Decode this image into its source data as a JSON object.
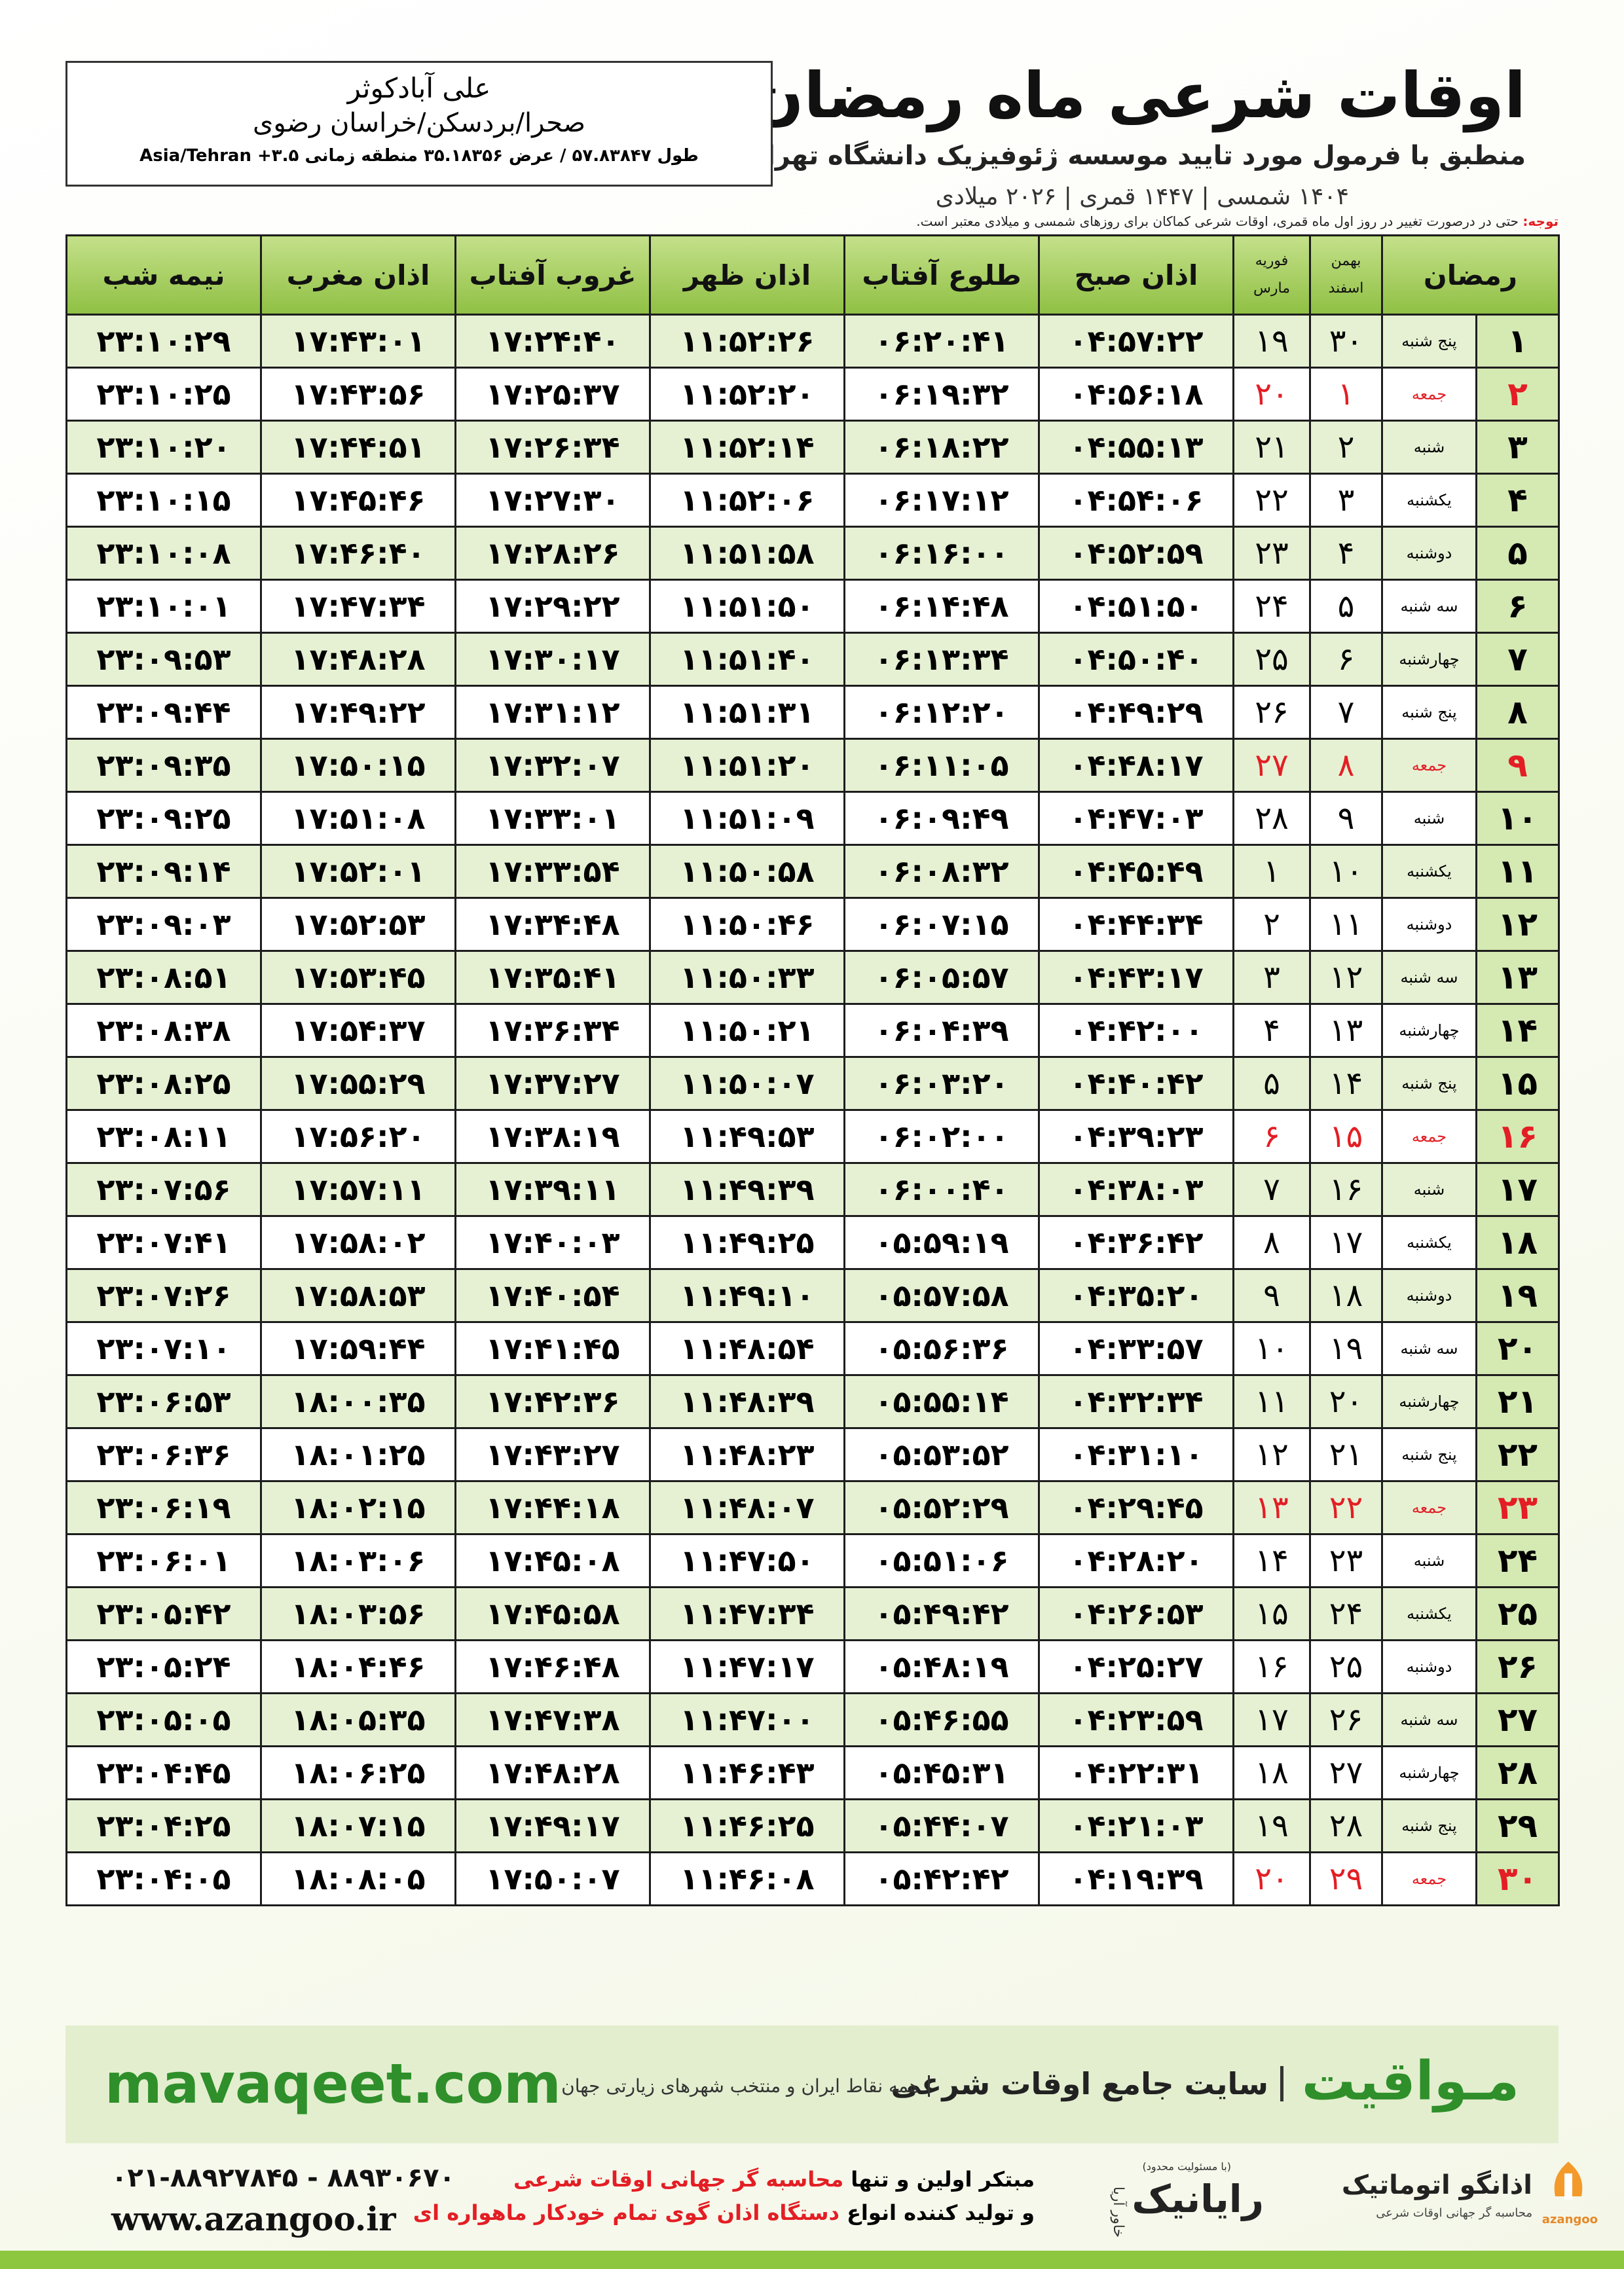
{
  "header": {
    "title": "اوقات شرعی ماه رمضان",
    "subtitle": "منطبق با فرمول مورد تایید موسسه ژئوفیزیک دانشگاه تهران",
    "years": "۱۴۰۴ شمسی | ۱۴۴۷ قمری | ۲۰۲۶ میلادی"
  },
  "location": {
    "name": "علی آبادکوثر",
    "region": "صحرا/بردسکن/خراسان رضوی",
    "coords": "طول ۵۷.۸۳۸۴۷ / عرض ۳۵.۱۸۳۵۶ منطقه زمانی ۳.۵+ Asia/Tehran"
  },
  "note": {
    "label": "توجه:",
    "text": "حتی در درصورت تغییر در روز اول ماه قمری، اوقات شرعی کماکان برای روزهای شمسی و میلادی معتبر است."
  },
  "table": {
    "highlight_color": "#e31e24",
    "columns": [
      "رمضان",
      [
        "بهمن",
        "اسفند"
      ],
      [
        "فوریه",
        "مارس"
      ],
      "اذان صبح",
      "طلوع آفتاب",
      "اذان ظهر",
      "غروب آفتاب",
      "اذان مغرب",
      "نیمه شب"
    ],
    "rows": [
      {
        "cells": [
          "۱",
          "پنج شنبه",
          "۳۰",
          "۱۹",
          "۰۴:۵۷:۲۲",
          "۰۶:۲۰:۴۱",
          "۱۱:۵۲:۲۶",
          "۱۷:۲۴:۴۰",
          "۱۷:۴۳:۰۱",
          "۲۳:۱۰:۲۹"
        ]
      },
      {
        "cells": [
          "۲",
          "جمعه",
          "۱",
          "۲۰",
          "۰۴:۵۶:۱۸",
          "۰۶:۱۹:۳۲",
          "۱۱:۵۲:۲۰",
          "۱۷:۲۵:۳۷",
          "۱۷:۴۳:۵۶",
          "۲۳:۱۰:۲۵"
        ],
        "highlight": true
      },
      {
        "cells": [
          "۳",
          "شنبه",
          "۲",
          "۲۱",
          "۰۴:۵۵:۱۳",
          "۰۶:۱۸:۲۲",
          "۱۱:۵۲:۱۴",
          "۱۷:۲۶:۳۴",
          "۱۷:۴۴:۵۱",
          "۲۳:۱۰:۲۰"
        ]
      },
      {
        "cells": [
          "۴",
          "یکشنبه",
          "۳",
          "۲۲",
          "۰۴:۵۴:۰۶",
          "۰۶:۱۷:۱۲",
          "۱۱:۵۲:۰۶",
          "۱۷:۲۷:۳۰",
          "۱۷:۴۵:۴۶",
          "۲۳:۱۰:۱۵"
        ]
      },
      {
        "cells": [
          "۵",
          "دوشنبه",
          "۴",
          "۲۳",
          "۰۴:۵۲:۵۹",
          "۰۶:۱۶:۰۰",
          "۱۱:۵۱:۵۸",
          "۱۷:۲۸:۲۶",
          "۱۷:۴۶:۴۰",
          "۲۳:۱۰:۰۸"
        ]
      },
      {
        "cells": [
          "۶",
          "سه شنبه",
          "۵",
          "۲۴",
          "۰۴:۵۱:۵۰",
          "۰۶:۱۴:۴۸",
          "۱۱:۵۱:۵۰",
          "۱۷:۲۹:۲۲",
          "۱۷:۴۷:۳۴",
          "۲۳:۱۰:۰۱"
        ]
      },
      {
        "cells": [
          "۷",
          "چهارشنبه",
          "۶",
          "۲۵",
          "۰۴:۵۰:۴۰",
          "۰۶:۱۳:۳۴",
          "۱۱:۵۱:۴۰",
          "۱۷:۳۰:۱۷",
          "۱۷:۴۸:۲۸",
          "۲۳:۰۹:۵۳"
        ]
      },
      {
        "cells": [
          "۸",
          "پنج شنبه",
          "۷",
          "۲۶",
          "۰۴:۴۹:۲۹",
          "۰۶:۱۲:۲۰",
          "۱۱:۵۱:۳۱",
          "۱۷:۳۱:۱۲",
          "۱۷:۴۹:۲۲",
          "۲۳:۰۹:۴۴"
        ]
      },
      {
        "cells": [
          "۹",
          "جمعه",
          "۸",
          "۲۷",
          "۰۴:۴۸:۱۷",
          "۰۶:۱۱:۰۵",
          "۱۱:۵۱:۲۰",
          "۱۷:۳۲:۰۷",
          "۱۷:۵۰:۱۵",
          "۲۳:۰۹:۳۵"
        ],
        "highlight": true
      },
      {
        "cells": [
          "۱۰",
          "شنبه",
          "۹",
          "۲۸",
          "۰۴:۴۷:۰۳",
          "۰۶:۰۹:۴۹",
          "۱۱:۵۱:۰۹",
          "۱۷:۳۳:۰۱",
          "۱۷:۵۱:۰۸",
          "۲۳:۰۹:۲۵"
        ]
      },
      {
        "cells": [
          "۱۱",
          "یکشنبه",
          "۱۰",
          "۱",
          "۰۴:۴۵:۴۹",
          "۰۶:۰۸:۳۲",
          "۱۱:۵۰:۵۸",
          "۱۷:۳۳:۵۴",
          "۱۷:۵۲:۰۱",
          "۲۳:۰۹:۱۴"
        ]
      },
      {
        "cells": [
          "۱۲",
          "دوشنبه",
          "۱۱",
          "۲",
          "۰۴:۴۴:۳۴",
          "۰۶:۰۷:۱۵",
          "۱۱:۵۰:۴۶",
          "۱۷:۳۴:۴۸",
          "۱۷:۵۲:۵۳",
          "۲۳:۰۹:۰۳"
        ]
      },
      {
        "cells": [
          "۱۳",
          "سه شنبه",
          "۱۲",
          "۳",
          "۰۴:۴۳:۱۷",
          "۰۶:۰۵:۵۷",
          "۱۱:۵۰:۳۳",
          "۱۷:۳۵:۴۱",
          "۱۷:۵۳:۴۵",
          "۲۳:۰۸:۵۱"
        ]
      },
      {
        "cells": [
          "۱۴",
          "چهارشنبه",
          "۱۳",
          "۴",
          "۰۴:۴۲:۰۰",
          "۰۶:۰۴:۳۹",
          "۱۱:۵۰:۲۱",
          "۱۷:۳۶:۳۴",
          "۱۷:۵۴:۳۷",
          "۲۳:۰۸:۳۸"
        ]
      },
      {
        "cells": [
          "۱۵",
          "پنج شنبه",
          "۱۴",
          "۵",
          "۰۴:۴۰:۴۲",
          "۰۶:۰۳:۲۰",
          "۱۱:۵۰:۰۷",
          "۱۷:۳۷:۲۷",
          "۱۷:۵۵:۲۹",
          "۲۳:۰۸:۲۵"
        ]
      },
      {
        "cells": [
          "۱۶",
          "جمعه",
          "۱۵",
          "۶",
          "۰۴:۳۹:۲۳",
          "۰۶:۰۲:۰۰",
          "۱۱:۴۹:۵۳",
          "۱۷:۳۸:۱۹",
          "۱۷:۵۶:۲۰",
          "۲۳:۰۸:۱۱"
        ],
        "highlight": true
      },
      {
        "cells": [
          "۱۷",
          "شنبه",
          "۱۶",
          "۷",
          "۰۴:۳۸:۰۳",
          "۰۶:۰۰:۴۰",
          "۱۱:۴۹:۳۹",
          "۱۷:۳۹:۱۱",
          "۱۷:۵۷:۱۱",
          "۲۳:۰۷:۵۶"
        ]
      },
      {
        "cells": [
          "۱۸",
          "یکشنبه",
          "۱۷",
          "۸",
          "۰۴:۳۶:۴۲",
          "۰۵:۵۹:۱۹",
          "۱۱:۴۹:۲۵",
          "۱۷:۴۰:۰۳",
          "۱۷:۵۸:۰۲",
          "۲۳:۰۷:۴۱"
        ]
      },
      {
        "cells": [
          "۱۹",
          "دوشنبه",
          "۱۸",
          "۹",
          "۰۴:۳۵:۲۰",
          "۰۵:۵۷:۵۸",
          "۱۱:۴۹:۱۰",
          "۱۷:۴۰:۵۴",
          "۱۷:۵۸:۵۳",
          "۲۳:۰۷:۲۶"
        ]
      },
      {
        "cells": [
          "۲۰",
          "سه شنبه",
          "۱۹",
          "۱۰",
          "۰۴:۳۳:۵۷",
          "۰۵:۵۶:۳۶",
          "۱۱:۴۸:۵۴",
          "۱۷:۴۱:۴۵",
          "۱۷:۵۹:۴۴",
          "۲۳:۰۷:۱۰"
        ]
      },
      {
        "cells": [
          "۲۱",
          "چهارشنبه",
          "۲۰",
          "۱۱",
          "۰۴:۳۲:۳۴",
          "۰۵:۵۵:۱۴",
          "۱۱:۴۸:۳۹",
          "۱۷:۴۲:۳۶",
          "۱۸:۰۰:۳۵",
          "۲۳:۰۶:۵۳"
        ]
      },
      {
        "cells": [
          "۲۲",
          "پنج شنبه",
          "۲۱",
          "۱۲",
          "۰۴:۳۱:۱۰",
          "۰۵:۵۳:۵۲",
          "۱۱:۴۸:۲۳",
          "۱۷:۴۳:۲۷",
          "۱۸:۰۱:۲۵",
          "۲۳:۰۶:۳۶"
        ]
      },
      {
        "cells": [
          "۲۳",
          "جمعه",
          "۲۲",
          "۱۳",
          "۰۴:۲۹:۴۵",
          "۰۵:۵۲:۲۹",
          "۱۱:۴۸:۰۷",
          "۱۷:۴۴:۱۸",
          "۱۸:۰۲:۱۵",
          "۲۳:۰۶:۱۹"
        ],
        "highlight": true
      },
      {
        "cells": [
          "۲۴",
          "شنبه",
          "۲۳",
          "۱۴",
          "۰۴:۲۸:۲۰",
          "۰۵:۵۱:۰۶",
          "۱۱:۴۷:۵۰",
          "۱۷:۴۵:۰۸",
          "۱۸:۰۳:۰۶",
          "۲۳:۰۶:۰۱"
        ]
      },
      {
        "cells": [
          "۲۵",
          "یکشنبه",
          "۲۴",
          "۱۵",
          "۰۴:۲۶:۵۳",
          "۰۵:۴۹:۴۲",
          "۱۱:۴۷:۳۴",
          "۱۷:۴۵:۵۸",
          "۱۸:۰۳:۵۶",
          "۲۳:۰۵:۴۲"
        ]
      },
      {
        "cells": [
          "۲۶",
          "دوشنبه",
          "۲۵",
          "۱۶",
          "۰۴:۲۵:۲۷",
          "۰۵:۴۸:۱۹",
          "۱۱:۴۷:۱۷",
          "۱۷:۴۶:۴۸",
          "۱۸:۰۴:۴۶",
          "۲۳:۰۵:۲۴"
        ]
      },
      {
        "cells": [
          "۲۷",
          "سه شنبه",
          "۲۶",
          "۱۷",
          "۰۴:۲۳:۵۹",
          "۰۵:۴۶:۵۵",
          "۱۱:۴۷:۰۰",
          "۱۷:۴۷:۳۸",
          "۱۸:۰۵:۳۵",
          "۲۳:۰۵:۰۵"
        ]
      },
      {
        "cells": [
          "۲۸",
          "چهارشنبه",
          "۲۷",
          "۱۸",
          "۰۴:۲۲:۳۱",
          "۰۵:۴۵:۳۱",
          "۱۱:۴۶:۴۳",
          "۱۷:۴۸:۲۸",
          "۱۸:۰۶:۲۵",
          "۲۳:۰۴:۴۵"
        ]
      },
      {
        "cells": [
          "۲۹",
          "پنج شنبه",
          "۲۸",
          "۱۹",
          "۰۴:۲۱:۰۳",
          "۰۵:۴۴:۰۷",
          "۱۱:۴۶:۲۵",
          "۱۷:۴۹:۱۷",
          "۱۸:۰۷:۱۵",
          "۲۳:۰۴:۲۵"
        ]
      },
      {
        "cells": [
          "۳۰",
          "جمعه",
          "۲۹",
          "۲۰",
          "۰۴:۱۹:۳۹",
          "۰۵:۴۲:۴۲",
          "۱۱:۴۶:۰۸",
          "۱۷:۵۰:۰۷",
          "۱۸:۰۸:۰۵",
          "۲۳:۰۴:۰۵"
        ],
        "highlight": true
      }
    ]
  },
  "banner": {
    "brand": "مـواقیت",
    "tagline": "سایت جامع اوقات شرعی",
    "coverage": "همه نقاط ایران و منتخب شهرهای زیارتی جهان",
    "url": "mavaqeet.com"
  },
  "footer": {
    "phones": "۰۲۱-۸۸۹۲۷۸۴۵ - ۸۸۹۳۰۶۷۰",
    "website": "www.azangoo.ir",
    "line1_a": "مبتکر اولین و تنها",
    "line1_b": "محاسبه گر جهانی اوقات شرعی",
    "line2_a": "و تولید کننده انواع",
    "line2_b": "دستگاه اذان گوی تمام خودکار ماهواره ای",
    "rayanik": "رایانیک",
    "rayanik_note": "(با مسئولیت محدود)",
    "khavar": "خاور آریا",
    "azangoo_fa": "اذانگو اتوماتیک",
    "azangoo_sub": "محاسبه گر جهانی اوقات شرعی",
    "azangoo_en": "azangoo"
  }
}
